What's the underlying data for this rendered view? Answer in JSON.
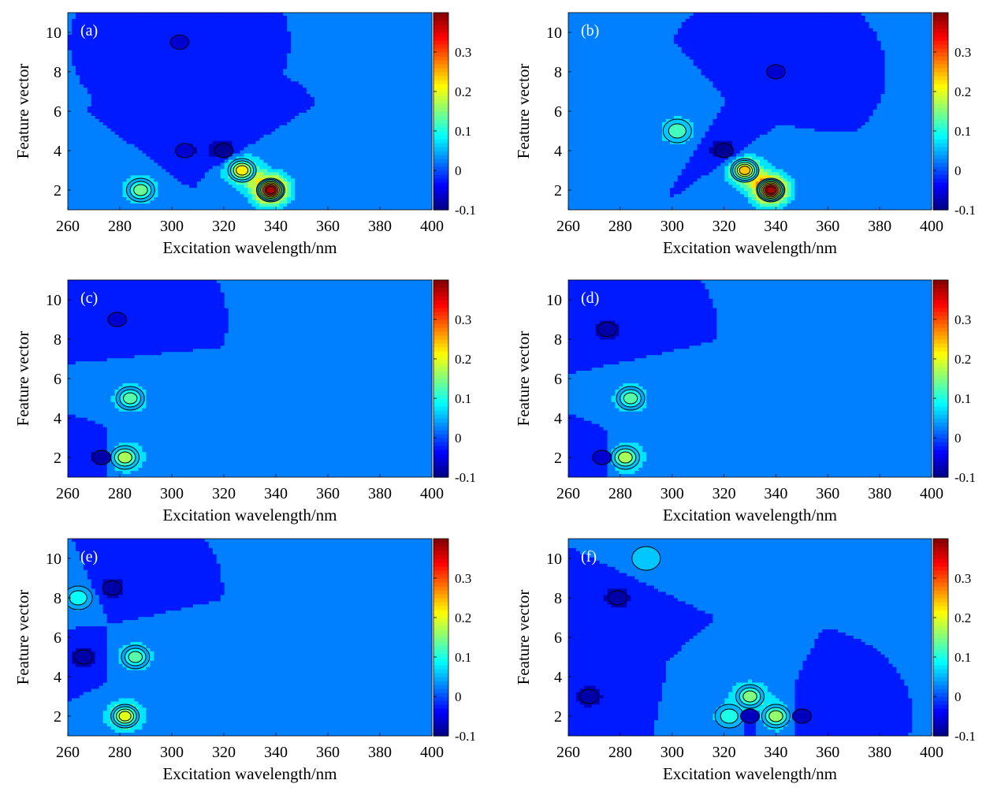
{
  "chart_data": [
    {
      "type": "heatmap",
      "panel_label": "(a)",
      "xlabel": "Excitation wavelength/nm",
      "ylabel": "Feature vector",
      "xlim": [
        260,
        400
      ],
      "ylim": [
        1,
        11
      ],
      "x_ticks": [
        "260",
        "280",
        "300",
        "320",
        "340",
        "360",
        "380",
        "400"
      ],
      "y_ticks": [
        "2",
        "4",
        "6",
        "8",
        "10"
      ],
      "colorbar": {
        "min": -0.1,
        "max": 0.4,
        "tick_labels": [
          "-0.1",
          "0",
          "0.1",
          "0.2",
          "0.3"
        ]
      },
      "background_value": 0.0,
      "peaks": [
        {
          "x": 338,
          "y": 2,
          "value": 0.38
        },
        {
          "x": 327,
          "y": 3,
          "value": 0.22
        },
        {
          "x": 288,
          "y": 2,
          "value": 0.14
        }
      ],
      "lows": [
        {
          "x": 320,
          "y": 4,
          "value": -0.09
        },
        {
          "x": 303,
          "y": 9.5,
          "value": -0.06
        },
        {
          "x": 305,
          "y": 4,
          "value": -0.06
        }
      ]
    },
    {
      "type": "heatmap",
      "panel_label": "(b)",
      "xlabel": "Excitation wavelength/nm",
      "ylabel": "Feature vector",
      "xlim": [
        260,
        400
      ],
      "ylim": [
        1,
        11
      ],
      "x_ticks": [
        "260",
        "280",
        "300",
        "320",
        "340",
        "360",
        "380",
        "400"
      ],
      "y_ticks": [
        "2",
        "4",
        "6",
        "8",
        "10"
      ],
      "colorbar": {
        "min": -0.1,
        "max": 0.4,
        "tick_labels": [
          "-0.1",
          "0",
          "0.1",
          "0.2",
          "0.3"
        ]
      },
      "background_value": 0.0,
      "peaks": [
        {
          "x": 338,
          "y": 2,
          "value": 0.38
        },
        {
          "x": 328,
          "y": 3,
          "value": 0.24
        },
        {
          "x": 302,
          "y": 5,
          "value": 0.12
        }
      ],
      "lows": [
        {
          "x": 320,
          "y": 4,
          "value": -0.09
        },
        {
          "x": 340,
          "y": 8,
          "value": -0.06
        }
      ]
    },
    {
      "type": "heatmap",
      "panel_label": "(c)",
      "xlabel": "Excitation wavelength/nm",
      "ylabel": "Feature vector",
      "xlim": [
        260,
        400
      ],
      "ylim": [
        1,
        11
      ],
      "x_ticks": [
        "260",
        "280",
        "300",
        "320",
        "340",
        "360",
        "380",
        "400"
      ],
      "y_ticks": [
        "2",
        "4",
        "6",
        "8",
        "10"
      ],
      "colorbar": {
        "min": -0.1,
        "max": 0.4,
        "tick_labels": [
          "-0.1",
          "0",
          "0.1",
          "0.2",
          "0.3"
        ]
      },
      "background_value": 0.0,
      "peaks": [
        {
          "x": 282,
          "y": 2,
          "value": 0.17
        },
        {
          "x": 284,
          "y": 5,
          "value": 0.13
        }
      ],
      "lows": [
        {
          "x": 273,
          "y": 2,
          "value": -0.08
        },
        {
          "x": 279,
          "y": 9,
          "value": -0.06
        }
      ]
    },
    {
      "type": "heatmap",
      "panel_label": "(d)",
      "xlabel": "Excitation wavelength/nm",
      "ylabel": "Feature vector",
      "xlim": [
        260,
        400
      ],
      "ylim": [
        1,
        11
      ],
      "x_ticks": [
        "260",
        "280",
        "300",
        "320",
        "340",
        "360",
        "380",
        "400"
      ],
      "y_ticks": [
        "2",
        "4",
        "6",
        "8",
        "10"
      ],
      "colorbar": {
        "min": -0.1,
        "max": 0.4,
        "tick_labels": [
          "-0.1",
          "0",
          "0.1",
          "0.2",
          "0.3"
        ]
      },
      "background_value": 0.0,
      "peaks": [
        {
          "x": 282,
          "y": 2,
          "value": 0.17
        },
        {
          "x": 284,
          "y": 5,
          "value": 0.13
        }
      ],
      "lows": [
        {
          "x": 275,
          "y": 8.5,
          "value": -0.08
        },
        {
          "x": 273,
          "y": 2,
          "value": -0.06
        }
      ]
    },
    {
      "type": "heatmap",
      "panel_label": "(e)",
      "xlabel": "Excitation wavelength/nm",
      "ylabel": "Feature vector",
      "xlim": [
        260,
        400
      ],
      "ylim": [
        1,
        11
      ],
      "x_ticks": [
        "260",
        "280",
        "300",
        "320",
        "340",
        "360",
        "380",
        "400"
      ],
      "y_ticks": [
        "2",
        "4",
        "6",
        "8",
        "10"
      ],
      "colorbar": {
        "min": -0.1,
        "max": 0.4,
        "tick_labels": [
          "-0.1",
          "0",
          "0.1",
          "0.2",
          "0.3"
        ]
      },
      "background_value": 0.0,
      "peaks": [
        {
          "x": 282,
          "y": 2,
          "value": 0.2
        },
        {
          "x": 286,
          "y": 5,
          "value": 0.13
        },
        {
          "x": 264,
          "y": 8,
          "value": 0.09
        }
      ],
      "lows": [
        {
          "x": 277,
          "y": 8.5,
          "value": -0.08
        },
        {
          "x": 266,
          "y": 5,
          "value": -0.08
        }
      ]
    },
    {
      "type": "heatmap",
      "panel_label": "(f)",
      "xlabel": "Excitation wavelength/nm",
      "ylabel": "Feature vector",
      "xlim": [
        260,
        400
      ],
      "ylim": [
        1,
        11
      ],
      "x_ticks": [
        "260",
        "280",
        "300",
        "320",
        "340",
        "360",
        "380",
        "400"
      ],
      "y_ticks": [
        "2",
        "4",
        "6",
        "8",
        "10"
      ],
      "colorbar": {
        "min": -0.1,
        "max": 0.4,
        "tick_labels": [
          "-0.1",
          "0",
          "0.1",
          "0.2",
          "0.3"
        ]
      },
      "background_value": 0.0,
      "peaks": [
        {
          "x": 330,
          "y": 3,
          "value": 0.15
        },
        {
          "x": 340,
          "y": 2,
          "value": 0.16
        },
        {
          "x": 322,
          "y": 2,
          "value": 0.1
        },
        {
          "x": 290,
          "y": 10,
          "value": 0.06
        }
      ],
      "lows": [
        {
          "x": 279,
          "y": 8,
          "value": -0.08
        },
        {
          "x": 268,
          "y": 3,
          "value": -0.08
        },
        {
          "x": 330,
          "y": 2,
          "value": -0.07
        },
        {
          "x": 350,
          "y": 2,
          "value": -0.07
        }
      ]
    }
  ]
}
